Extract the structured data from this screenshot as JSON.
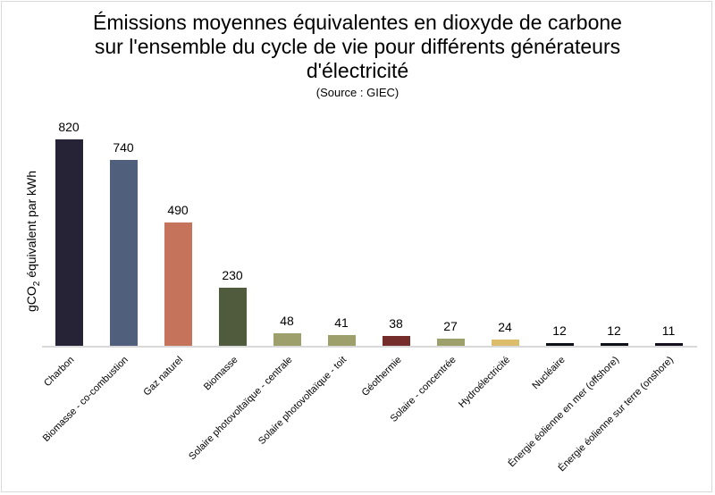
{
  "chart_data": {
    "type": "bar",
    "title": "Émissions moyennes équivalentes en dioxyde de carbone sur l'ensemble du cycle de vie pour différents générateurs d'électricité",
    "title_lines": [
      "Émissions moyennes équivalentes en dioxyde de carbone",
      "sur l'ensemble du cycle de vie pour différents générateurs",
      "d'électricité"
    ],
    "subtitle": "(Source : GIEC)",
    "xlabel": "",
    "ylabel": "gCO2 équivalent par kWh",
    "ylabel_parts": {
      "pre": "gCO",
      "sub": "2",
      "post": " équivalent par kWh"
    },
    "ylim": [
      0,
      820
    ],
    "grid": false,
    "legend": null,
    "categories": [
      "Charbon",
      "Biomasse - co-combustion",
      "Gaz naturel",
      "Biomasse",
      "Solaire photovoltaïque - centrale",
      "Solaire photovoltaïque - toit",
      "Géothermie",
      "Solaire - concentrée",
      "Hydroélectricité",
      "Nucléaire",
      "Énergie éolienne en mer (offshore)",
      "Énergie éolienne sur terre (onshore)"
    ],
    "values": [
      820,
      740,
      490,
      230,
      48,
      41,
      38,
      27,
      24,
      12,
      12,
      11
    ],
    "colors": [
      "#272336",
      "#4f5f7c",
      "#c5735a",
      "#505a3c",
      "#9ea06c",
      "#9ea06c",
      "#742d2b",
      "#9ea06c",
      "#dcbd6c",
      "#101018",
      "#101018",
      "#141020"
    ]
  }
}
